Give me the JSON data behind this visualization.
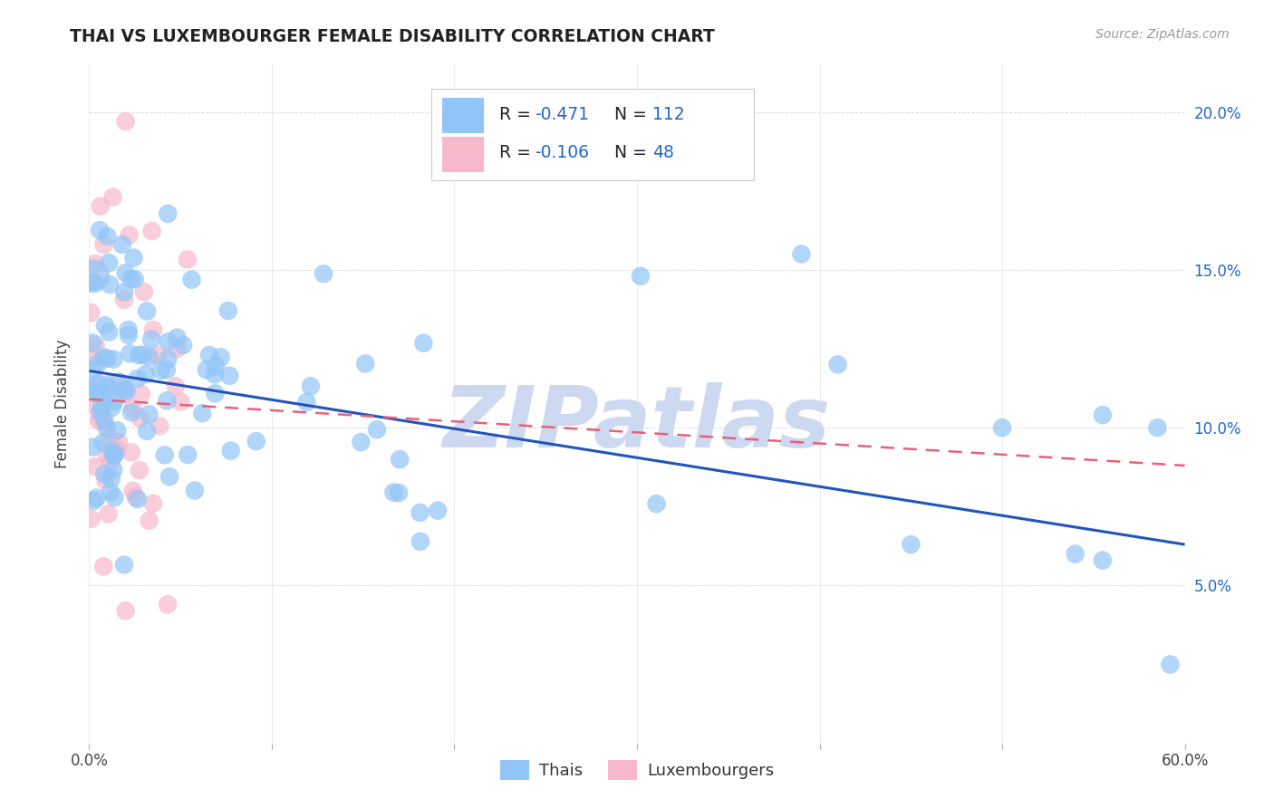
{
  "title": "THAI VS LUXEMBOURGER FEMALE DISABILITY CORRELATION CHART",
  "source": "Source: ZipAtlas.com",
  "ylabel": "Female Disability",
  "xlim": [
    0.0,
    0.6
  ],
  "ylim": [
    0.0,
    0.215
  ],
  "yticks": [
    0.05,
    0.1,
    0.15,
    0.2
  ],
  "ytick_labels": [
    "5.0%",
    "10.0%",
    "15.0%",
    "20.0%"
  ],
  "xticks": [
    0.0,
    0.1,
    0.2,
    0.3,
    0.4,
    0.5,
    0.6
  ],
  "thai_R": -0.471,
  "thai_N": 112,
  "lux_R": -0.106,
  "lux_N": 48,
  "thai_color": "#92c5f7",
  "lux_color": "#f7b8cb",
  "thai_line_color": "#2255bb",
  "lux_line_color": "#e8607a",
  "watermark": "ZIPatlas",
  "watermark_color": "#ccd9f0",
  "background_color": "#ffffff",
  "grid_color": "#dddddd",
  "text_color": "#444444",
  "blue_text": "#2266cc",
  "thai_line_x0": 0.0,
  "thai_line_x1": 0.6,
  "thai_line_y0": 0.118,
  "thai_line_y1": 0.063,
  "lux_line_x0": 0.0,
  "lux_line_x1": 0.6,
  "lux_line_y0": 0.109,
  "lux_line_y1": 0.088
}
